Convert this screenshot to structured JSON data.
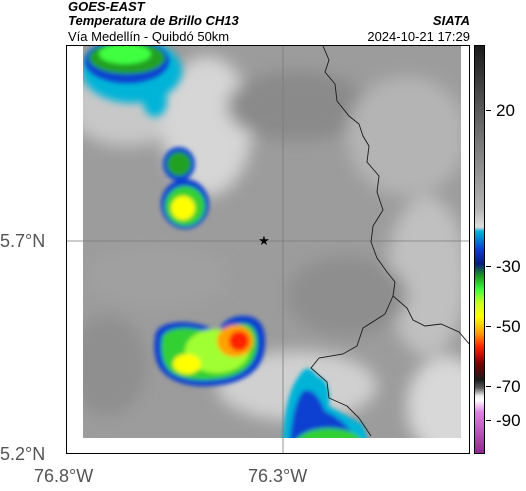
{
  "header": {
    "satellite": "GOES-EAST",
    "product": "Temperatura de Brillo CH13",
    "area": "Vía Medellín - Quibdó 50km",
    "organization": "SIATA",
    "datetime": "2024-10-21 17:29"
  },
  "map": {
    "lon_ticks": [
      "76.8°W",
      "76.3°W"
    ],
    "lat_ticks": [
      "5.7°N",
      "5.2°N"
    ],
    "marker": "star-marker",
    "gridlines": true
  },
  "colorbar": {
    "ticks": [
      "20",
      "-30",
      "-50",
      "-70",
      "-90"
    ],
    "colors": {
      "warm_gray_dark": "#1a1a1a",
      "cyan": "#00b4d8",
      "blue": "#0a3fd0",
      "green": "#40ff40",
      "yellow": "#ffff00",
      "red": "#ff2000",
      "magenta": "#902890"
    }
  }
}
